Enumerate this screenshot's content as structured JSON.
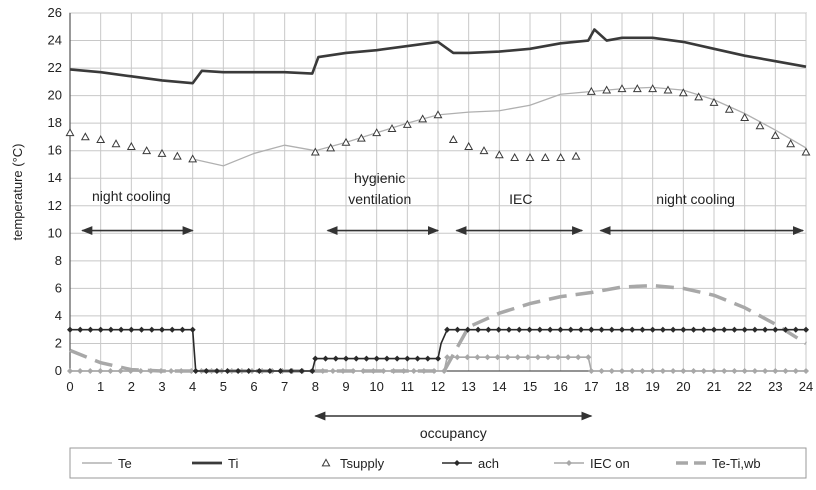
{
  "chart_data": {
    "type": "line",
    "xlabel": "",
    "ylabel": "temperature (°C)",
    "xlim": [
      0,
      24
    ],
    "ylim": [
      0,
      26
    ],
    "x_ticks": [
      0,
      1,
      2,
      3,
      4,
      5,
      6,
      7,
      8,
      9,
      10,
      11,
      12,
      13,
      14,
      15,
      16,
      17,
      18,
      19,
      20,
      21,
      22,
      23,
      24
    ],
    "y_ticks": [
      0,
      2,
      4,
      6,
      8,
      10,
      12,
      14,
      16,
      18,
      20,
      22,
      24,
      26
    ],
    "grid": true,
    "legend_position": "bottom",
    "series": [
      {
        "name": "Te",
        "color": "#b0b0b0",
        "style": "thin-line",
        "x": [
          4,
          5,
          6,
          7,
          8,
          9,
          10,
          11,
          12,
          13,
          14,
          15,
          16,
          17,
          18,
          19,
          20,
          21,
          22,
          23,
          24
        ],
        "y": [
          15.4,
          14.9,
          15.8,
          16.4,
          16.0,
          16.6,
          17.3,
          18.0,
          18.6,
          18.8,
          18.9,
          19.3,
          20.1,
          20.3,
          20.5,
          20.6,
          20.4,
          19.7,
          18.7,
          17.5,
          16.2
        ]
      },
      {
        "name": "Ti",
        "color": "#3a3a3a",
        "style": "thick-line",
        "x": [
          0,
          1,
          2,
          3,
          4,
          4.3,
          5,
          6,
          7,
          7.9,
          8.1,
          9,
          10,
          11,
          12,
          12.5,
          13,
          14,
          15,
          16,
          16.9,
          17.1,
          17.5,
          18,
          19,
          20,
          21,
          22,
          23,
          24
        ],
        "y": [
          21.9,
          21.7,
          21.4,
          21.1,
          20.9,
          21.8,
          21.7,
          21.7,
          21.7,
          21.6,
          22.8,
          23.1,
          23.3,
          23.6,
          23.9,
          23.1,
          23.1,
          23.2,
          23.4,
          23.8,
          24.0,
          24.8,
          24.0,
          24.2,
          24.2,
          23.9,
          23.4,
          22.9,
          22.5,
          22.1
        ]
      },
      {
        "name": "Tsupply",
        "color": "#3a3a3a",
        "style": "triangle-markers",
        "x": [
          0,
          0.5,
          1,
          1.5,
          2,
          2.5,
          3,
          3.5,
          4,
          8,
          8.5,
          9,
          9.5,
          10,
          10.5,
          11,
          11.5,
          12,
          12.5,
          13,
          13.5,
          14,
          14.5,
          15,
          15.5,
          16,
          16.5,
          17,
          17.5,
          18,
          18.5,
          19,
          19.5,
          20,
          20.5,
          21,
          21.5,
          22,
          22.5,
          23,
          23.5,
          24
        ],
        "y": [
          17.3,
          17.0,
          16.8,
          16.5,
          16.3,
          16.0,
          15.8,
          15.6,
          15.4,
          15.9,
          16.2,
          16.6,
          16.9,
          17.3,
          17.6,
          17.9,
          18.3,
          18.6,
          16.8,
          16.3,
          16.0,
          15.7,
          15.5,
          15.5,
          15.5,
          15.5,
          15.6,
          20.3,
          20.4,
          20.5,
          20.5,
          20.5,
          20.4,
          20.2,
          19.9,
          19.5,
          19.0,
          18.4,
          17.8,
          17.1,
          16.5,
          15.9
        ]
      },
      {
        "name": "ach",
        "color": "#2a2a2a",
        "style": "line-with-diamonds",
        "x": [
          0,
          4,
          4.1,
          7.9,
          8,
          12,
          12.1,
          12.3,
          17,
          24
        ],
        "y": [
          3,
          3,
          0,
          0,
          0.9,
          0.9,
          2.0,
          3,
          3,
          3
        ]
      },
      {
        "name": "IEC on",
        "color": "#a8a8a8",
        "style": "line-with-diamonds",
        "x": [
          0,
          12.2,
          12.3,
          16.9,
          17.0,
          24
        ],
        "y": [
          0,
          0,
          1,
          1,
          0,
          0
        ]
      },
      {
        "name": "Te-Ti,wb",
        "color": "#a8a8a8",
        "style": "thick-dashed",
        "x": [
          0,
          1,
          2,
          3,
          4,
          4.3,
          12.2,
          13,
          14,
          15,
          16,
          17,
          18,
          19,
          20,
          21,
          22,
          23,
          24
        ],
        "y": [
          1.5,
          0.6,
          0.1,
          0.0,
          0.0,
          0.0,
          0.0,
          3.2,
          4.2,
          4.9,
          5.4,
          5.7,
          6.1,
          6.2,
          6.0,
          5.5,
          4.6,
          3.4,
          2.0
        ]
      }
    ],
    "annotations": [
      {
        "label": "night cooling",
        "x": 2.0,
        "y": 12.7
      },
      {
        "label": "hygienic",
        "x": 10.1,
        "y": 14.0
      },
      {
        "label": "ventilation",
        "x": 10.1,
        "y": 12.5
      },
      {
        "label": "IEC",
        "x": 14.7,
        "y": 12.5
      },
      {
        "label": "night cooling",
        "x": 20.4,
        "y": 12.5
      }
    ],
    "arrows": [
      {
        "x1": 0.4,
        "x2": 4.0,
        "y": 10.2
      },
      {
        "x1": 8.4,
        "x2": 12.0,
        "y": 10.2
      },
      {
        "x1": 12.6,
        "x2": 16.7,
        "y": 10.2
      },
      {
        "x1": 17.3,
        "x2": 23.9,
        "y": 10.2
      }
    ],
    "occupancy": {
      "label": "occupancy",
      "x1": 8.0,
      "x2": 17.0
    }
  }
}
